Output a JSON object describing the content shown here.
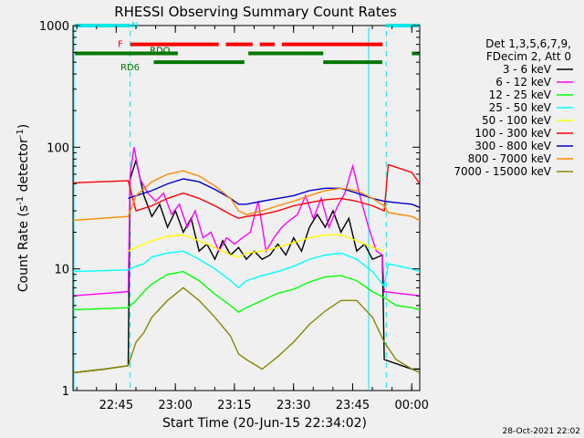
{
  "chart_data": {
    "type": "line",
    "title": "RHESSI Observing Summary Count Rates",
    "xlabel": "Start Time (20-Jun-15 22:34:02)",
    "ylabel_main": "Count Rate (s",
    "ylabel_sup1": "-1",
    "ylabel_mid": " detector",
    "ylabel_sup2": "-1",
    "ylabel_end": ")",
    "y_scale": "log",
    "ylim": [
      1,
      1000
    ],
    "xlim_minutes": [
      0,
      88
    ],
    "yticks": [
      {
        "v": 1,
        "label": "1"
      },
      {
        "v": 10,
        "label": "10"
      },
      {
        "v": 100,
        "label": "100"
      },
      {
        "v": 1000,
        "label": "1000"
      }
    ],
    "xticks": [
      {
        "t": 10.97,
        "label": "22:45"
      },
      {
        "t": 25.97,
        "label": "23:00"
      },
      {
        "t": 40.97,
        "label": "23:15"
      },
      {
        "t": 55.97,
        "label": "23:30"
      },
      {
        "t": 70.97,
        "label": "23:45"
      },
      {
        "t": 85.97,
        "label": "00:00"
      }
    ],
    "legend_header": [
      "Det 1,3,5,6,7,9,",
      "FDecim 2, Att 0"
    ],
    "legend_placement": "right",
    "timestamp": "28-Oct-2021 22:02",
    "night_boundaries_minutes": [
      14.5,
      79.5
    ],
    "flags": [
      {
        "label": "N",
        "color": "#00e8e8",
        "row": 1000,
        "segments": [
          [
            0.5,
            14.5
          ],
          [
            79.5,
            93
          ]
        ]
      },
      {
        "label": "F",
        "color": "#ff0000",
        "row": 700,
        "segments": [
          [
            14.6,
            37
          ],
          [
            38.8,
            45.6
          ],
          [
            47.4,
            51.2
          ],
          [
            53,
            78.6
          ]
        ]
      },
      {
        "label": "RDO",
        "color": "#007700",
        "row": 590,
        "segments": [
          [
            0.5,
            26.6
          ]
        ]
      },
      {
        "label": "RDO",
        "color": "#007700",
        "row": 590,
        "segments": [
          [
            44.5,
            63.5
          ],
          [
            86,
            94
          ]
        ]
      },
      {
        "label": "RD6",
        "color": "#007700",
        "row": 500,
        "segments": [
          [
            20.5,
            43.5
          ],
          [
            63.5,
            78.5
          ]
        ]
      }
    ],
    "series": [
      {
        "name": "3 - 6 keV",
        "color": "#000000",
        "values": [
          [
            0,
            1.4
          ],
          [
            8,
            1.5
          ],
          [
            14,
            1.6
          ],
          [
            14.5,
            55
          ],
          [
            16,
            78
          ],
          [
            18,
            40
          ],
          [
            20,
            27
          ],
          [
            22,
            34
          ],
          [
            24,
            22
          ],
          [
            26,
            30
          ],
          [
            28,
            20
          ],
          [
            30,
            26
          ],
          [
            32,
            14
          ],
          [
            34,
            16
          ],
          [
            36,
            12
          ],
          [
            38,
            17
          ],
          [
            40,
            13
          ],
          [
            42,
            15
          ],
          [
            44,
            12
          ],
          [
            46,
            14
          ],
          [
            48,
            12
          ],
          [
            50,
            13
          ],
          [
            52,
            16
          ],
          [
            54,
            13
          ],
          [
            56,
            18
          ],
          [
            58,
            14
          ],
          [
            60,
            22
          ],
          [
            62,
            28
          ],
          [
            64,
            22
          ],
          [
            66,
            30
          ],
          [
            68,
            20
          ],
          [
            70,
            26
          ],
          [
            72,
            14
          ],
          [
            74,
            16
          ],
          [
            76,
            12
          ],
          [
            78.5,
            13
          ],
          [
            79,
            1.8
          ],
          [
            86,
            1.5
          ],
          [
            93,
            1.5
          ]
        ]
      },
      {
        "name": "6 - 12 keV",
        "color": "#ff00ff",
        "values": [
          [
            0,
            6
          ],
          [
            14,
            6.5
          ],
          [
            14.5,
            60
          ],
          [
            15.5,
            100
          ],
          [
            17,
            55
          ],
          [
            19,
            42
          ],
          [
            21,
            36
          ],
          [
            23,
            42
          ],
          [
            25,
            28
          ],
          [
            27,
            34
          ],
          [
            29,
            22
          ],
          [
            31,
            30
          ],
          [
            33,
            18
          ],
          [
            35,
            20
          ],
          [
            37,
            14
          ],
          [
            39,
            18
          ],
          [
            41,
            16
          ],
          [
            43,
            18
          ],
          [
            45,
            20
          ],
          [
            47,
            36
          ],
          [
            49,
            14
          ],
          [
            51,
            18
          ],
          [
            53,
            22
          ],
          [
            55,
            25
          ],
          [
            57,
            28
          ],
          [
            59,
            40
          ],
          [
            61,
            26
          ],
          [
            63,
            38
          ],
          [
            65,
            22
          ],
          [
            67,
            32
          ],
          [
            69,
            42
          ],
          [
            71,
            70
          ],
          [
            73,
            38
          ],
          [
            75,
            22
          ],
          [
            77,
            14
          ],
          [
            78.5,
            13
          ],
          [
            79,
            6.5
          ],
          [
            93,
            6
          ]
        ]
      },
      {
        "name": "12 - 25 keV",
        "color": "#00ff00",
        "values": [
          [
            0,
            4.6
          ],
          [
            14,
            4.8
          ],
          [
            16,
            5.5
          ],
          [
            18,
            6.5
          ],
          [
            20,
            7.5
          ],
          [
            24,
            9
          ],
          [
            28,
            9.5
          ],
          [
            32,
            8
          ],
          [
            36,
            6.2
          ],
          [
            40,
            5
          ],
          [
            42,
            4.4
          ],
          [
            44,
            4.8
          ],
          [
            48,
            5.5
          ],
          [
            52,
            6.3
          ],
          [
            56,
            6.8
          ],
          [
            60,
            7.8
          ],
          [
            64,
            8.6
          ],
          [
            68,
            8.8
          ],
          [
            72,
            8
          ],
          [
            76,
            6.5
          ],
          [
            79,
            5.8
          ],
          [
            82,
            5
          ],
          [
            86,
            4.8
          ],
          [
            93,
            4.6
          ]
        ]
      },
      {
        "name": "25 - 50 keV",
        "color": "#00ffff",
        "values": [
          [
            0,
            9.5
          ],
          [
            14,
            9.8
          ],
          [
            16,
            10.5
          ],
          [
            18,
            11
          ],
          [
            20,
            12.5
          ],
          [
            24,
            13.5
          ],
          [
            28,
            14
          ],
          [
            32,
            12
          ],
          [
            36,
            10
          ],
          [
            40,
            8
          ],
          [
            42,
            7
          ],
          [
            44,
            8
          ],
          [
            48,
            8.8
          ],
          [
            52,
            9.5
          ],
          [
            56,
            10.5
          ],
          [
            60,
            12
          ],
          [
            64,
            13
          ],
          [
            68,
            13.5
          ],
          [
            72,
            12
          ],
          [
            76,
            9.5
          ],
          [
            79,
            7.2
          ],
          [
            80,
            11
          ],
          [
            86,
            10
          ],
          [
            93,
            9.5
          ]
        ]
      },
      {
        "name": "50 - 100 keV",
        "color": "#ffff00",
        "values": [
          [
            14,
            14
          ],
          [
            16,
            15
          ],
          [
            18,
            16
          ],
          [
            20,
            17
          ],
          [
            24,
            18.5
          ],
          [
            28,
            19
          ],
          [
            32,
            17
          ],
          [
            36,
            15
          ],
          [
            40,
            13
          ],
          [
            42,
            12.5
          ],
          [
            44,
            13.5
          ],
          [
            48,
            14
          ],
          [
            52,
            15
          ],
          [
            56,
            16.5
          ],
          [
            60,
            18
          ],
          [
            64,
            19
          ],
          [
            68,
            19
          ],
          [
            72,
            17
          ],
          [
            76,
            15
          ],
          [
            79,
            14
          ]
        ]
      },
      {
        "name": "100 - 300 keV",
        "color": "#ff0000",
        "values": [
          [
            0,
            51
          ],
          [
            14,
            53
          ],
          [
            16,
            30
          ],
          [
            20,
            33
          ],
          [
            24,
            38
          ],
          [
            28,
            42
          ],
          [
            32,
            38
          ],
          [
            36,
            33
          ],
          [
            40,
            28
          ],
          [
            42,
            26
          ],
          [
            44,
            27
          ],
          [
            48,
            28
          ],
          [
            52,
            30
          ],
          [
            56,
            33
          ],
          [
            60,
            35
          ],
          [
            64,
            37
          ],
          [
            68,
            38
          ],
          [
            72,
            36
          ],
          [
            76,
            33
          ],
          [
            79,
            30
          ],
          [
            80,
            72
          ],
          [
            86,
            62
          ],
          [
            93,
            50
          ]
        ]
      },
      {
        "name": "300 - 800 keV",
        "color": "#0000cc",
        "values": [
          [
            14,
            38
          ],
          [
            16,
            40
          ],
          [
            20,
            44
          ],
          [
            24,
            50
          ],
          [
            28,
            55
          ],
          [
            32,
            52
          ],
          [
            36,
            45
          ],
          [
            40,
            38
          ],
          [
            42,
            34
          ],
          [
            44,
            34
          ],
          [
            48,
            36
          ],
          [
            52,
            38
          ],
          [
            56,
            40
          ],
          [
            60,
            44
          ],
          [
            64,
            46
          ],
          [
            68,
            46
          ],
          [
            72,
            42
          ],
          [
            76,
            38
          ],
          [
            79,
            36
          ],
          [
            82,
            35
          ],
          [
            86,
            34
          ],
          [
            93,
            32
          ]
        ]
      },
      {
        "name": "800 - 7000 keV",
        "color": "#ff8800",
        "values": [
          [
            0,
            25
          ],
          [
            14,
            27
          ],
          [
            16,
            40
          ],
          [
            20,
            52
          ],
          [
            24,
            60
          ],
          [
            28,
            64
          ],
          [
            32,
            58
          ],
          [
            36,
            48
          ],
          [
            40,
            38
          ],
          [
            42,
            30
          ],
          [
            44,
            28
          ],
          [
            48,
            30
          ],
          [
            52,
            33
          ],
          [
            56,
            36
          ],
          [
            60,
            40
          ],
          [
            64,
            44
          ],
          [
            68,
            46
          ],
          [
            72,
            44
          ],
          [
            76,
            38
          ],
          [
            79,
            33
          ],
          [
            80,
            29
          ],
          [
            86,
            27
          ],
          [
            93,
            25
          ]
        ]
      },
      {
        "name": "7000 - 15000 keV",
        "color": "#888800",
        "values": [
          [
            0,
            1.4
          ],
          [
            8,
            1.5
          ],
          [
            14,
            1.6
          ],
          [
            16,
            2.5
          ],
          [
            18,
            3
          ],
          [
            20,
            4
          ],
          [
            24,
            5.5
          ],
          [
            28,
            7
          ],
          [
            32,
            5.5
          ],
          [
            36,
            4
          ],
          [
            40,
            2.8
          ],
          [
            42,
            2
          ],
          [
            44,
            1.8
          ],
          [
            48,
            1.5
          ],
          [
            52,
            1.9
          ],
          [
            56,
            2.5
          ],
          [
            60,
            3.5
          ],
          [
            64,
            4.5
          ],
          [
            68,
            5.5
          ],
          [
            72,
            5.5
          ],
          [
            76,
            4
          ],
          [
            79,
            2.5
          ],
          [
            82,
            1.8
          ],
          [
            86,
            1.5
          ],
          [
            93,
            1.4
          ]
        ]
      }
    ]
  }
}
